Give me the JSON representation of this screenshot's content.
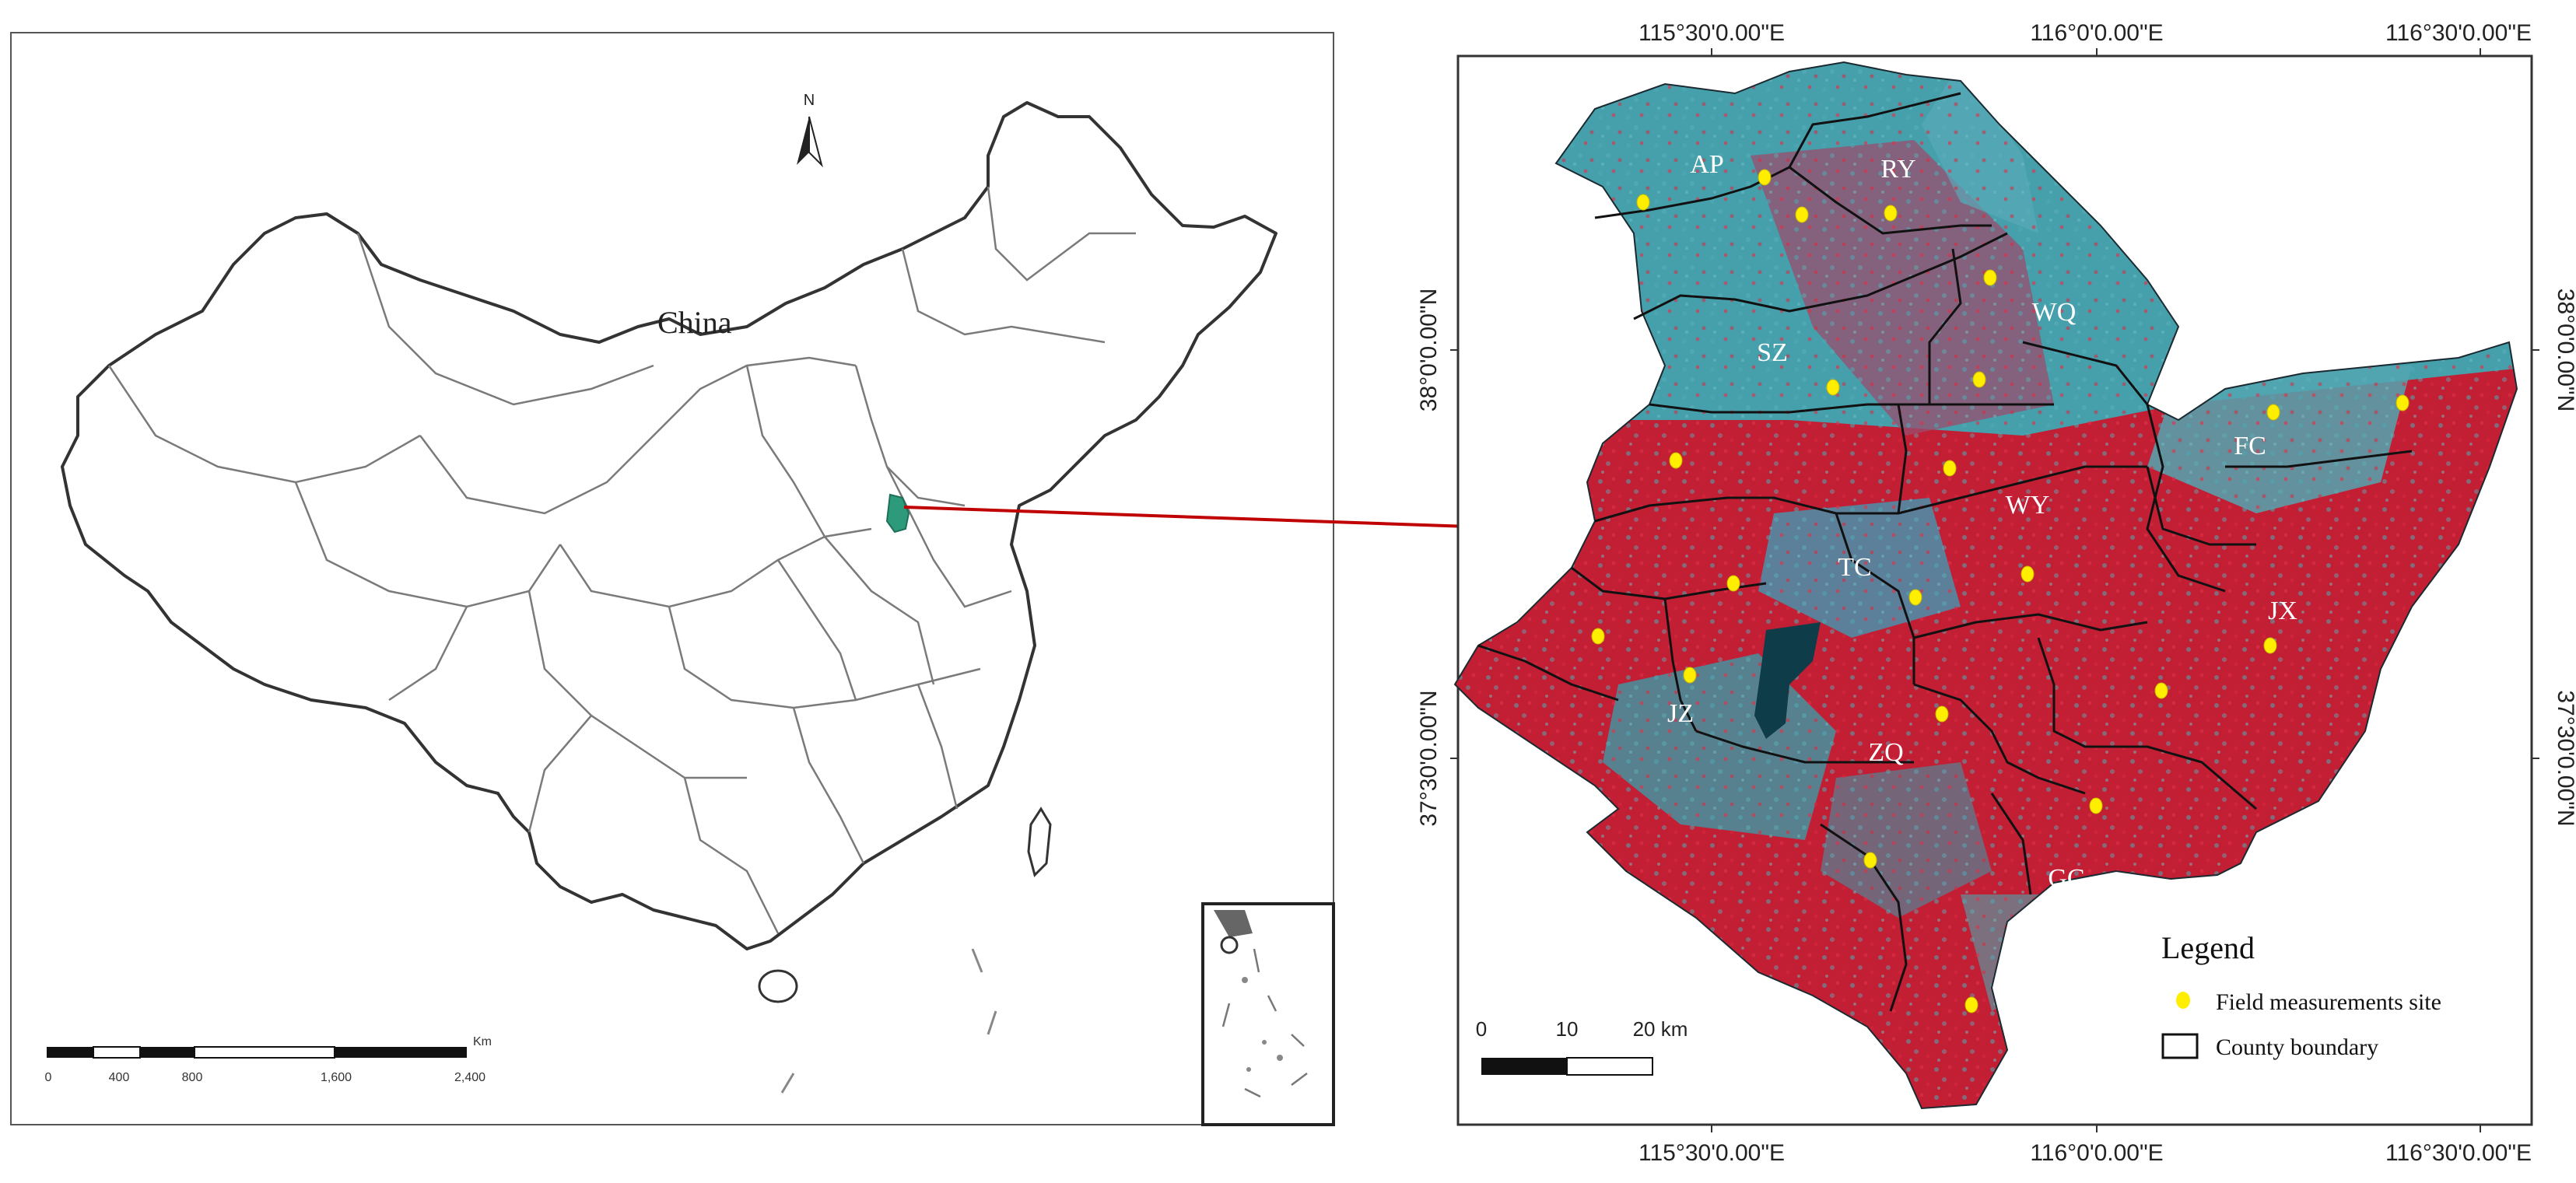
{
  "left_map": {
    "country_label": "China",
    "north_label": "N",
    "scale_unit": "Km",
    "scale_ticks": [
      "0",
      "400",
      "800",
      "1,600",
      "2,400"
    ]
  },
  "right_map": {
    "top_lon_labels": [
      "115°30'0.00\"E",
      "116°0'0.00\"E",
      "116°30'0.00\"E"
    ],
    "bottom_lon_labels": [
      "115°30'0.00\"E",
      "116°0'0.00\"E",
      "116°30'0.00\"E"
    ],
    "left_lat_labels": [
      "38°0'0.00\"N",
      "37°30'0.00\"N"
    ],
    "right_lat_labels": [
      "38°0'0.00\"N",
      "37°30'0.00\"N"
    ],
    "counties": [
      "AP",
      "RY",
      "WQ",
      "SZ",
      "FC",
      "WY",
      "TC",
      "JX",
      "JZ",
      "ZQ",
      "GC"
    ],
    "scale_ticks": [
      "0",
      "10",
      "20 km"
    ],
    "legend": {
      "title": "Legend",
      "site_label": "Field measurements site",
      "boundary_label": "County boundary"
    }
  },
  "colors": {
    "highlight": "#2e9a7c",
    "arrow": "#c00000",
    "site": "#ffee00",
    "vegetation": "#c21e34",
    "urban": "#4aa6b4",
    "water": "#0e3c48"
  }
}
